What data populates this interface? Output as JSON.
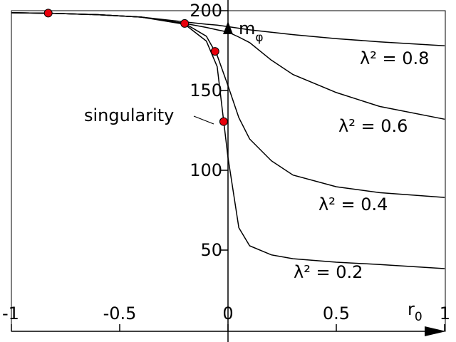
{
  "chart_data": {
    "type": "line",
    "x": [
      -1,
      -0.8,
      -0.6,
      -0.4,
      -0.2,
      -0.1,
      -0.05,
      0,
      0.05,
      0.1,
      0.2,
      0.3,
      0.5,
      0.7,
      1
    ],
    "series": [
      {
        "name": "λ² = 0.8",
        "color": "#000000",
        "values": [
          198.7,
          198.3,
          197.5,
          196,
          193,
          191.5,
          191,
          190,
          189,
          188,
          186.5,
          185,
          182.5,
          180.5,
          178
        ]
      },
      {
        "name": "λ² = 0.6",
        "color": "#000000",
        "values": [
          198.7,
          198.3,
          197.5,
          196,
          192,
          189.5,
          188,
          186.6,
          183.5,
          180,
          169,
          160,
          148.7,
          140,
          132
        ]
      },
      {
        "name": "λ² = 0.4",
        "color": "#000000",
        "values": [
          198.7,
          198.3,
          197.5,
          196,
          192,
          184,
          172,
          153,
          133,
          119.6,
          106,
          97,
          89.7,
          86,
          83
        ]
      },
      {
        "name": "λ² = 0.2",
        "color": "#000000",
        "values": [
          198.7,
          198.3,
          197.5,
          196,
          191.5,
          181,
          165,
          108,
          64,
          52.7,
          47,
          44.6,
          42.4,
          41,
          38.4
        ]
      }
    ],
    "points": {
      "color": "#e8000b",
      "x": [
        -0.83,
        -0.2,
        -0.06,
        -0.02
      ],
      "y": [
        198.5,
        192,
        174.5,
        130.5
      ]
    },
    "annotation": "singularity",
    "ylabel": [
      "m",
      "φ"
    ],
    "xlabel": [
      "r",
      "0"
    ],
    "xlim": [
      -1,
      1
    ],
    "ylim": [
      0,
      200
    ],
    "xticks": [
      -1,
      -0.5,
      0,
      0.5,
      1
    ],
    "yticks": [
      50,
      100,
      150,
      200
    ]
  }
}
